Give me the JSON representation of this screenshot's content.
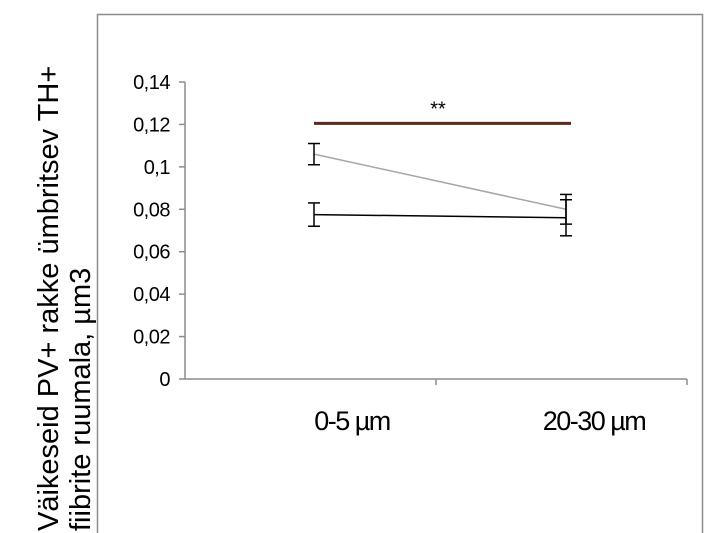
{
  "chart_data": {
    "type": "line",
    "categories": [
      "0-5 µm",
      "20-30 µm"
    ],
    "series": [
      {
        "values": [
          0.106,
          0.08
        ],
        "errors": [
          0.005,
          0.007
        ],
        "color": "#a6a6a6"
      },
      {
        "values": [
          0.0775,
          0.076
        ],
        "errors": [
          0.0055,
          0.0085
        ],
        "color": "#000000"
      }
    ],
    "ylim": [
      0,
      0.14
    ],
    "y_ticks": [
      0,
      0.02,
      0.04,
      0.06,
      0.08,
      0.1,
      0.12,
      0.14
    ],
    "y_tick_labels": [
      "0",
      "0,02",
      "0,04",
      "0,06",
      "0,08",
      "0,1",
      "0,12",
      "0,14"
    ],
    "ylabel_lines": [
      "Väikeseid PV+ rakke ümbritsev TH+",
      "fiibrite ruumala, µm3"
    ],
    "significance": {
      "label": "**",
      "y": 0.1205,
      "color": "#5a2a1a"
    },
    "grid": false,
    "plot_frame": true
  }
}
